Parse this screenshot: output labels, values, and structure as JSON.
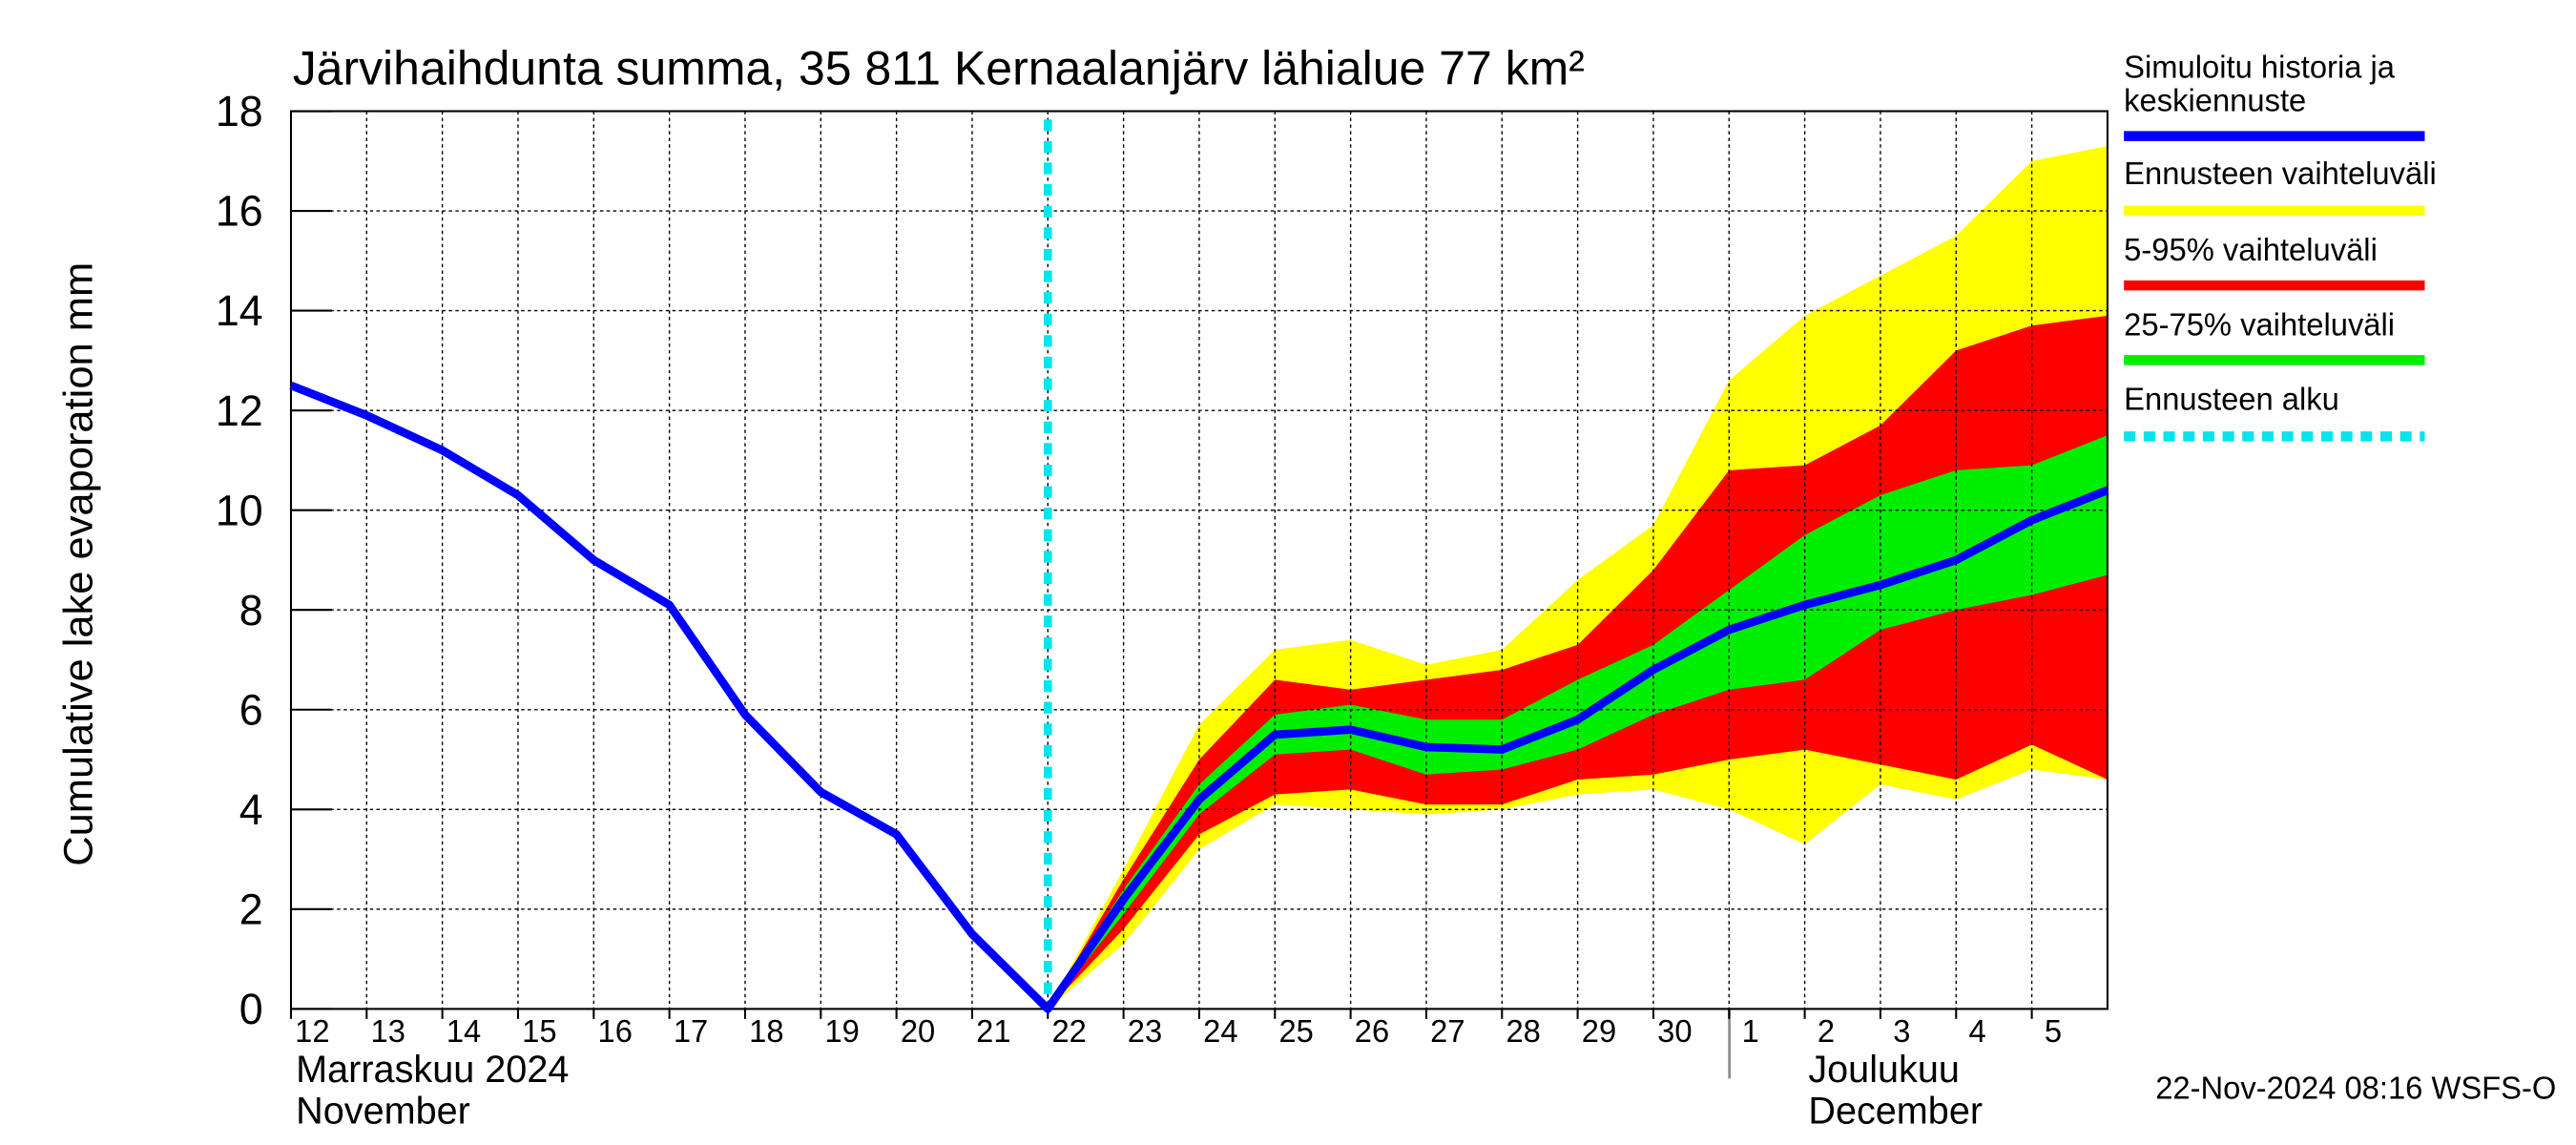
{
  "chart_data": {
    "type": "line",
    "title": "Järvihaihdunta summa, 35 811 Kernaalanjärv lähialue 77 km²",
    "y_label": "Cumulative lake evaporation   mm",
    "x": [
      12,
      13,
      14,
      15,
      16,
      17,
      18,
      19,
      20,
      21,
      22,
      23,
      24,
      25,
      26,
      27,
      28,
      29,
      30,
      31,
      32,
      33,
      34,
      35,
      36
    ],
    "xlim": [
      12,
      36
    ],
    "xticks": [
      12,
      13,
      14,
      15,
      16,
      17,
      18,
      19,
      20,
      21,
      22,
      23,
      24,
      25,
      26,
      27,
      28,
      29,
      30,
      {
        "value": 31,
        "label": "1"
      },
      {
        "value": 32,
        "label": "2"
      },
      {
        "value": 33,
        "label": "3"
      },
      {
        "value": 34,
        "label": "4"
      },
      {
        "value": 35,
        "label": "5"
      }
    ],
    "ylim": [
      0,
      18
    ],
    "yticks": [
      0,
      2,
      4,
      6,
      8,
      10,
      12,
      14,
      16,
      18
    ],
    "grid": true,
    "series": [
      {
        "name": "Simuloitu historia ja keskiennuste",
        "color": "#0000ff",
        "values": [
          12.5,
          11.9,
          11.2,
          10.3,
          9.0,
          8.1,
          5.9,
          4.35,
          3.5,
          1.5,
          0,
          2.2,
          4.2,
          5.5,
          5.6,
          5.25,
          5.2,
          5.8,
          6.8,
          7.6,
          8.1,
          8.5,
          9.0,
          9.8,
          10.4
        ]
      }
    ],
    "band_x": [
      22,
      23,
      24,
      25,
      26,
      27,
      28,
      29,
      30,
      31,
      32,
      33,
      34,
      35,
      36
    ],
    "bands": [
      {
        "name": "Ennusteen vaihteluväli",
        "color": "#ffff00",
        "upper": [
          0,
          2.8,
          5.7,
          7.2,
          7.4,
          6.9,
          7.2,
          8.6,
          9.7,
          12.6,
          13.9,
          14.7,
          15.5,
          17.0,
          17.3
        ],
        "lower": [
          0,
          1.3,
          3.2,
          4.1,
          4.0,
          3.9,
          4.0,
          4.3,
          4.4,
          4.0,
          3.3,
          4.5,
          4.2,
          4.8,
          4.6
        ]
      },
      {
        "name": "5-95% vaihteluväli",
        "color": "#ff0000",
        "upper": [
          0,
          2.6,
          5.0,
          6.6,
          6.4,
          6.6,
          6.8,
          7.3,
          8.8,
          10.8,
          10.9,
          11.7,
          13.2,
          13.7,
          13.9
        ],
        "lower": [
          0,
          1.6,
          3.5,
          4.3,
          4.4,
          4.1,
          4.1,
          4.6,
          4.7,
          5.0,
          5.2,
          4.9,
          4.6,
          5.3,
          4.6
        ]
      },
      {
        "name": "25-75% vaihteluväli",
        "color": "#00ee00",
        "upper": [
          0,
          2.4,
          4.5,
          5.9,
          6.1,
          5.8,
          5.8,
          6.6,
          7.3,
          8.4,
          9.5,
          10.3,
          10.8,
          10.9,
          11.5
        ],
        "lower": [
          0,
          1.9,
          3.9,
          5.1,
          5.2,
          4.7,
          4.8,
          5.2,
          5.9,
          6.4,
          6.6,
          7.6,
          8.0,
          8.3,
          8.7
        ]
      }
    ],
    "forecast_start": {
      "name": "Ennusteen alku",
      "color": "#00e5ee",
      "x": 22
    },
    "month_labels": [
      "Marraskuu 2024",
      "November",
      "Joulukuu",
      "December"
    ],
    "timestamp": "22-Nov-2024 08:16 WSFS-O"
  }
}
